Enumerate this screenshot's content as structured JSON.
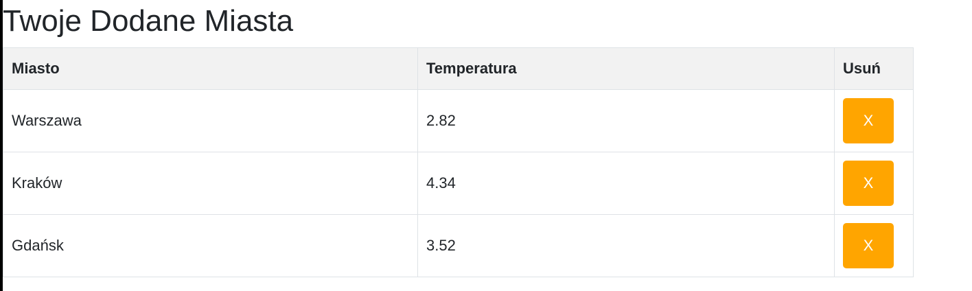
{
  "page": {
    "title": "Twoje Dodane Miasta"
  },
  "table": {
    "headers": {
      "city": "Miasto",
      "temperature": "Temperatura",
      "remove": "Usuń"
    },
    "rows": [
      {
        "city": "Warszawa",
        "temperature": "2.82",
        "remove_label": "X"
      },
      {
        "city": "Kraków",
        "temperature": "4.34",
        "remove_label": "X"
      },
      {
        "city": "Gdańsk",
        "temperature": "3.52",
        "remove_label": "X"
      }
    ]
  },
  "colors": {
    "remove_button": "#ffa500",
    "header_background": "#f2f2f2",
    "border": "#dee2e6",
    "text": "#212529"
  }
}
